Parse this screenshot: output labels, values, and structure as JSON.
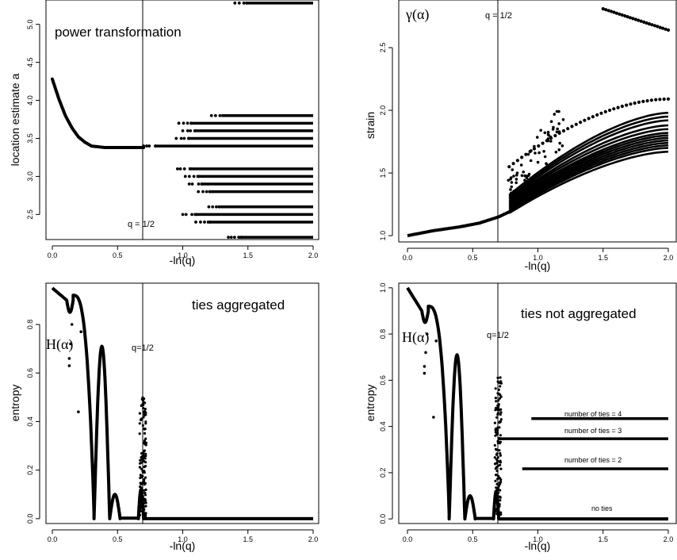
{
  "chart_data": [
    {
      "type": "scatter",
      "title": "",
      "xlabel": "-ln(q)",
      "ylabel": "location estimate  a",
      "xlim": [
        0,
        2
      ],
      "ylim": [
        2.17,
        5.32
      ],
      "xticks": [
        "0.0",
        "0.5",
        "1.0",
        "1.5",
        "2.0"
      ],
      "yticks": [
        "2.5",
        "3.0",
        "3.5",
        "4.0",
        "4.5",
        "5.0"
      ],
      "grid": false,
      "annotations": [
        {
          "text": "power transformation",
          "x": 0.02,
          "y": 5.0
        },
        {
          "text": "q = 1/2",
          "x": 0.58,
          "y": 2.35
        }
      ],
      "vline_x": 0.693,
      "curve": {
        "from": 0.0,
        "to": 0.7,
        "points": [
          [
            0.0,
            4.28
          ],
          [
            0.05,
            4.02
          ],
          [
            0.1,
            3.8
          ],
          [
            0.15,
            3.64
          ],
          [
            0.2,
            3.52
          ],
          [
            0.25,
            3.45
          ],
          [
            0.3,
            3.4
          ],
          [
            0.4,
            3.38
          ],
          [
            0.5,
            3.38
          ],
          [
            0.7,
            3.38
          ]
        ]
      },
      "bands": [
        {
          "y": 5.28,
          "from": 1.4,
          "to": 2.0
        },
        {
          "y": 3.8,
          "from": 1.22,
          "to": 2.0
        },
        {
          "y": 3.7,
          "from": 0.97,
          "to": 2.0
        },
        {
          "y": 3.6,
          "from": 1.0,
          "to": 2.0
        },
        {
          "y": 3.5,
          "from": 0.95,
          "to": 2.0
        },
        {
          "y": 3.4,
          "from": 0.7,
          "to": 2.0
        },
        {
          "y": 3.1,
          "from": 0.96,
          "to": 2.0
        },
        {
          "y": 3.0,
          "from": 1.02,
          "to": 2.0
        },
        {
          "y": 2.9,
          "from": 1.05,
          "to": 2.0
        },
        {
          "y": 2.8,
          "from": 1.12,
          "to": 2.0
        },
        {
          "y": 2.6,
          "from": 1.2,
          "to": 2.0
        },
        {
          "y": 2.5,
          "from": 1.0,
          "to": 2.0
        },
        {
          "y": 2.4,
          "from": 1.1,
          "to": 2.0
        },
        {
          "y": 2.2,
          "from": 1.35,
          "to": 2.0
        }
      ]
    },
    {
      "type": "scatter",
      "title": "",
      "xlabel": "-ln(q)",
      "ylabel": "strain",
      "xlim": [
        0,
        2
      ],
      "ylim": [
        0.95,
        2.88
      ],
      "xticks": [
        "0.0",
        "0.5",
        "1.0",
        "1.5",
        "2.0"
      ],
      "yticks": [
        "1.0",
        "1.5",
        "2.0",
        "2.5"
      ],
      "grid": false,
      "annotations": [
        {
          "text": "γ(α)",
          "x": 0.05,
          "y": 2.78
        },
        {
          "text": "q = 1/2",
          "x": 0.6,
          "y": 2.78
        }
      ],
      "vline_x": 0.693,
      "base_curve": [
        [
          0.0,
          1.0
        ],
        [
          0.2,
          1.04
        ],
        [
          0.4,
          1.07
        ],
        [
          0.55,
          1.1
        ],
        [
          0.7,
          1.15
        ],
        [
          0.8,
          1.2
        ]
      ],
      "fan_curves": [
        {
          "end": 1.67
        },
        {
          "end": 1.7
        },
        {
          "end": 1.72
        },
        {
          "end": 1.74
        },
        {
          "end": 1.76
        },
        {
          "end": 1.78
        },
        {
          "end": 1.8
        },
        {
          "end": 1.82
        },
        {
          "end": 1.85
        },
        {
          "end": 1.88
        },
        {
          "end": 1.92
        },
        {
          "end": 1.95
        },
        {
          "end": 1.98
        }
      ],
      "upper_curve": {
        "start": [
          0.78,
          1.55
        ],
        "end": [
          2.0,
          2.09
        ]
      },
      "top_segment": {
        "start": [
          1.5,
          2.81
        ],
        "end": [
          2.0,
          2.64
        ]
      }
    },
    {
      "type": "scatter",
      "title": "",
      "xlabel": "-ln(q)",
      "ylabel": "entropy",
      "xlim": [
        0,
        2
      ],
      "ylim": [
        -0.02,
        0.97
      ],
      "xticks": [
        "0.0",
        "0.5",
        "1.0",
        "1.5",
        "2.0"
      ],
      "yticks": [
        "0.0",
        "0.2",
        "0.4",
        "0.6",
        "0.8"
      ],
      "grid": false,
      "annotations": [
        {
          "text": "ties aggregated",
          "x": 1.08,
          "y": 0.88
        },
        {
          "text": "H(α)",
          "x": 0.05,
          "y": 0.76
        },
        {
          "text": "q=1/2",
          "x": 0.6,
          "y": 0.74
        }
      ],
      "vline_x": 0.693
    },
    {
      "type": "scatter",
      "title": "",
      "xlabel": "-ln(q)",
      "ylabel": "entropy",
      "xlim": [
        0,
        2
      ],
      "ylim": [
        -0.02,
        1.02
      ],
      "xticks": [
        "0.0",
        "0.5",
        "1.0",
        "1.5",
        "2.0"
      ],
      "yticks": [
        "0.0",
        "0.2",
        "0.4",
        "0.6",
        "0.8",
        "1.0"
      ],
      "grid": false,
      "annotations": [
        {
          "text": "ties not aggregated",
          "x": 0.85,
          "y": 0.88
        },
        {
          "text": "H(α)",
          "x": 0.05,
          "y": 0.78
        },
        {
          "text": "q=1/2",
          "x": 0.6,
          "y": 0.77
        },
        {
          "text": "number of ties = 4",
          "x": 1.17,
          "y": 0.45
        },
        {
          "text": "number of ties = 3",
          "x": 1.17,
          "y": 0.36
        },
        {
          "text": "number of ties = 2",
          "x": 1.17,
          "y": 0.23
        },
        {
          "text": "no ties",
          "x": 1.4,
          "y": 0.01
        }
      ],
      "vline_x": 0.693,
      "plateaus": [
        {
          "y": 0.434,
          "from": 0.95,
          "to": 2.0
        },
        {
          "y": 0.347,
          "from": 0.7,
          "to": 2.0
        },
        {
          "y": 0.217,
          "from": 0.88,
          "to": 2.0
        },
        {
          "y": 0.0,
          "from": 0.7,
          "to": 2.0
        }
      ]
    }
  ]
}
